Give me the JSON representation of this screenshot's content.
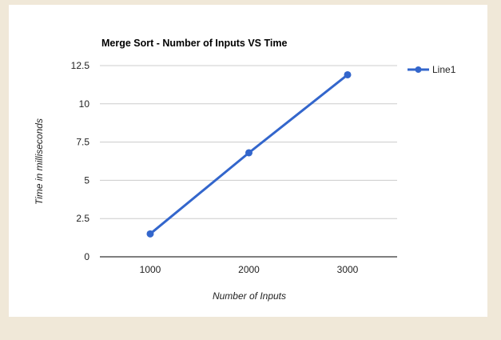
{
  "colors": {
    "page_background": "#f0e8d8",
    "chart_background": "#ffffff",
    "series_line": "#3366cc",
    "gridline": "#cccccc",
    "axis": "#333333"
  },
  "chart_data": {
    "type": "line",
    "title": "Merge Sort - Number of Inputs VS Time",
    "xlabel": "Number of Inputs",
    "ylabel": "Time in milliseconds",
    "categories": [
      "1000",
      "2000",
      "3000"
    ],
    "series": [
      {
        "name": "Line1",
        "values": [
          1.5,
          6.8,
          11.9
        ],
        "color": "#3366cc"
      }
    ],
    "ylim": [
      0,
      12.5
    ],
    "yticks": [
      "0",
      "2.5",
      "5",
      "7.5",
      "10",
      "12.5"
    ],
    "ytick_values": [
      0,
      2.5,
      5,
      7.5,
      10,
      12.5
    ],
    "grid": true,
    "legend_position": "right"
  }
}
